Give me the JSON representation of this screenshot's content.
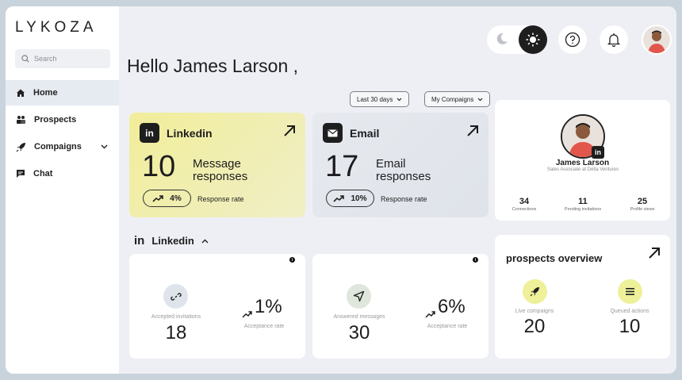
{
  "brand": {
    "logo_text": "LYKOZA"
  },
  "search": {
    "placeholder": "Search"
  },
  "sidebar": {
    "items": [
      {
        "label": "Home",
        "icon": "home-icon",
        "active": true
      },
      {
        "label": "Prospects",
        "icon": "people-icon"
      },
      {
        "label": "Compaigns",
        "icon": "rocket-icon",
        "has_chevron": true
      },
      {
        "label": "Chat",
        "icon": "chat-icon"
      }
    ]
  },
  "header": {
    "greeting": "Hello James Larson ,"
  },
  "filters": {
    "period": "Last 30 days",
    "scope": "My Compaigns"
  },
  "linkedin_card": {
    "title": "Linkedin",
    "value": "10",
    "label": "Message responses",
    "rate": "4%",
    "rate_label": "Response rate"
  },
  "email_card": {
    "title": "Email",
    "value": "17",
    "label": "Email responses",
    "rate": "10%",
    "rate_label": "Response rate"
  },
  "profile": {
    "name": "James Larson",
    "role": "Sales Associate at Delta Ventures",
    "stats": [
      {
        "value": "34",
        "label": "Connections"
      },
      {
        "value": "11",
        "label": "Pending invitations"
      },
      {
        "value": "25",
        "label": "Profile views"
      }
    ]
  },
  "linkedin_section": {
    "title": "Linkedin",
    "accepted": {
      "label": "Accepted invitations",
      "value": "18",
      "pct": "1%",
      "pct_label": "Acceptance rate"
    },
    "answered": {
      "label": "Answered messages",
      "value": "30",
      "pct": "6%",
      "pct_label": "Acceptance rate"
    }
  },
  "prospects_overview": {
    "title": "prospects overview",
    "live": {
      "label": "Live compaigns",
      "value": "20"
    },
    "queued": {
      "label": "Queued actions",
      "value": "10"
    }
  },
  "colors": {
    "linkedin_card_bg": "#f1ed9a",
    "email_card_bg": "#e6e9ee",
    "accent_yellow": "#eef09a",
    "dark": "#1e1e1e"
  }
}
